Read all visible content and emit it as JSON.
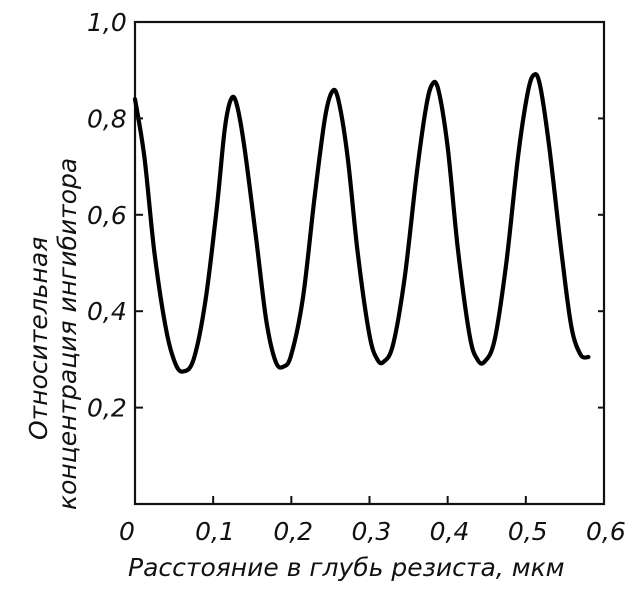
{
  "chart_data": {
    "type": "line",
    "xlabel": "Расстояние в глубь резиста, мкм",
    "ylabel_lines": [
      "Относительная",
      "концентрация ингибитора"
    ],
    "xlim": [
      0,
      0.6
    ],
    "ylim": [
      0,
      1.0
    ],
    "x_ticks": [
      {
        "value": 0,
        "label": "0"
      },
      {
        "value": 0.1,
        "label": "0,1"
      },
      {
        "value": 0.2,
        "label": "0,2"
      },
      {
        "value": 0.3,
        "label": "0,3"
      },
      {
        "value": 0.4,
        "label": "0,4"
      },
      {
        "value": 0.5,
        "label": "0,5"
      },
      {
        "value": 0.6,
        "label": "0,6"
      }
    ],
    "y_ticks": [
      {
        "value": 0.2,
        "label": "0,2"
      },
      {
        "value": 0.4,
        "label": "0,4"
      },
      {
        "value": 0.6,
        "label": "0,6"
      },
      {
        "value": 0.8,
        "label": "0,8"
      },
      {
        "value": 1.0,
        "label": "1,0"
      }
    ],
    "grid": false,
    "series": [
      {
        "points": [
          [
            0.0,
            0.84
          ],
          [
            0.012,
            0.72
          ],
          [
            0.025,
            0.52
          ],
          [
            0.04,
            0.36
          ],
          [
            0.052,
            0.29
          ],
          [
            0.062,
            0.275
          ],
          [
            0.075,
            0.3
          ],
          [
            0.09,
            0.42
          ],
          [
            0.105,
            0.62
          ],
          [
            0.115,
            0.78
          ],
          [
            0.123,
            0.84
          ],
          [
            0.13,
            0.83
          ],
          [
            0.14,
            0.74
          ],
          [
            0.155,
            0.55
          ],
          [
            0.168,
            0.38
          ],
          [
            0.18,
            0.295
          ],
          [
            0.19,
            0.285
          ],
          [
            0.2,
            0.31
          ],
          [
            0.215,
            0.43
          ],
          [
            0.23,
            0.64
          ],
          [
            0.243,
            0.8
          ],
          [
            0.252,
            0.855
          ],
          [
            0.26,
            0.84
          ],
          [
            0.272,
            0.72
          ],
          [
            0.285,
            0.52
          ],
          [
            0.3,
            0.35
          ],
          [
            0.31,
            0.3
          ],
          [
            0.318,
            0.295
          ],
          [
            0.33,
            0.33
          ],
          [
            0.345,
            0.47
          ],
          [
            0.36,
            0.68
          ],
          [
            0.372,
            0.82
          ],
          [
            0.38,
            0.87
          ],
          [
            0.388,
            0.86
          ],
          [
            0.4,
            0.74
          ],
          [
            0.413,
            0.53
          ],
          [
            0.428,
            0.35
          ],
          [
            0.438,
            0.3
          ],
          [
            0.447,
            0.295
          ],
          [
            0.46,
            0.34
          ],
          [
            0.475,
            0.5
          ],
          [
            0.49,
            0.72
          ],
          [
            0.502,
            0.85
          ],
          [
            0.51,
            0.89
          ],
          [
            0.518,
            0.87
          ],
          [
            0.53,
            0.74
          ],
          [
            0.545,
            0.53
          ],
          [
            0.558,
            0.37
          ],
          [
            0.57,
            0.31
          ],
          [
            0.58,
            0.305
          ]
        ]
      }
    ]
  }
}
